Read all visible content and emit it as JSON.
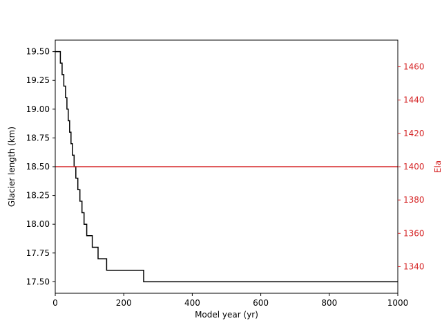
{
  "chart_data": {
    "type": "line",
    "title": "",
    "xlabel": "Model year (yr)",
    "ylabel": "Glacier length (km)",
    "y2label": "Ela",
    "xlim": [
      0,
      1000
    ],
    "ylim": [
      17.4,
      19.6
    ],
    "y2lim": [
      1324,
      1476
    ],
    "grid": false,
    "legend": "none",
    "x_ticks": [
      0,
      200,
      400,
      600,
      800,
      1000
    ],
    "y_ticks": [
      17.5,
      17.75,
      18.0,
      18.25,
      18.5,
      18.75,
      19.0,
      19.25,
      19.5
    ],
    "y2_ticks": [
      1340,
      1360,
      1380,
      1400,
      1420,
      1440,
      1460
    ],
    "series": [
      {
        "axis": "left",
        "color": "#000000",
        "step": true,
        "x": [
          0,
          10,
          15,
          20,
          25,
          30,
          34,
          38,
          42,
          46,
          50,
          55,
          60,
          66,
          72,
          78,
          84,
          92,
          100,
          108,
          116,
          125,
          138,
          150,
          160,
          200,
          258,
          1000
        ],
        "y": [
          19.5,
          19.5,
          19.4,
          19.3,
          19.2,
          19.1,
          19.0,
          18.9,
          18.8,
          18.7,
          18.6,
          18.5,
          18.4,
          18.3,
          18.2,
          18.1,
          18.0,
          17.9,
          17.9,
          17.8,
          17.8,
          17.7,
          17.7,
          17.6,
          17.6,
          17.6,
          17.5,
          17.5
        ]
      },
      {
        "axis": "right",
        "color": "#d62728",
        "step": false,
        "x": [
          0,
          1000
        ],
        "y": [
          1400,
          1400
        ]
      }
    ]
  }
}
